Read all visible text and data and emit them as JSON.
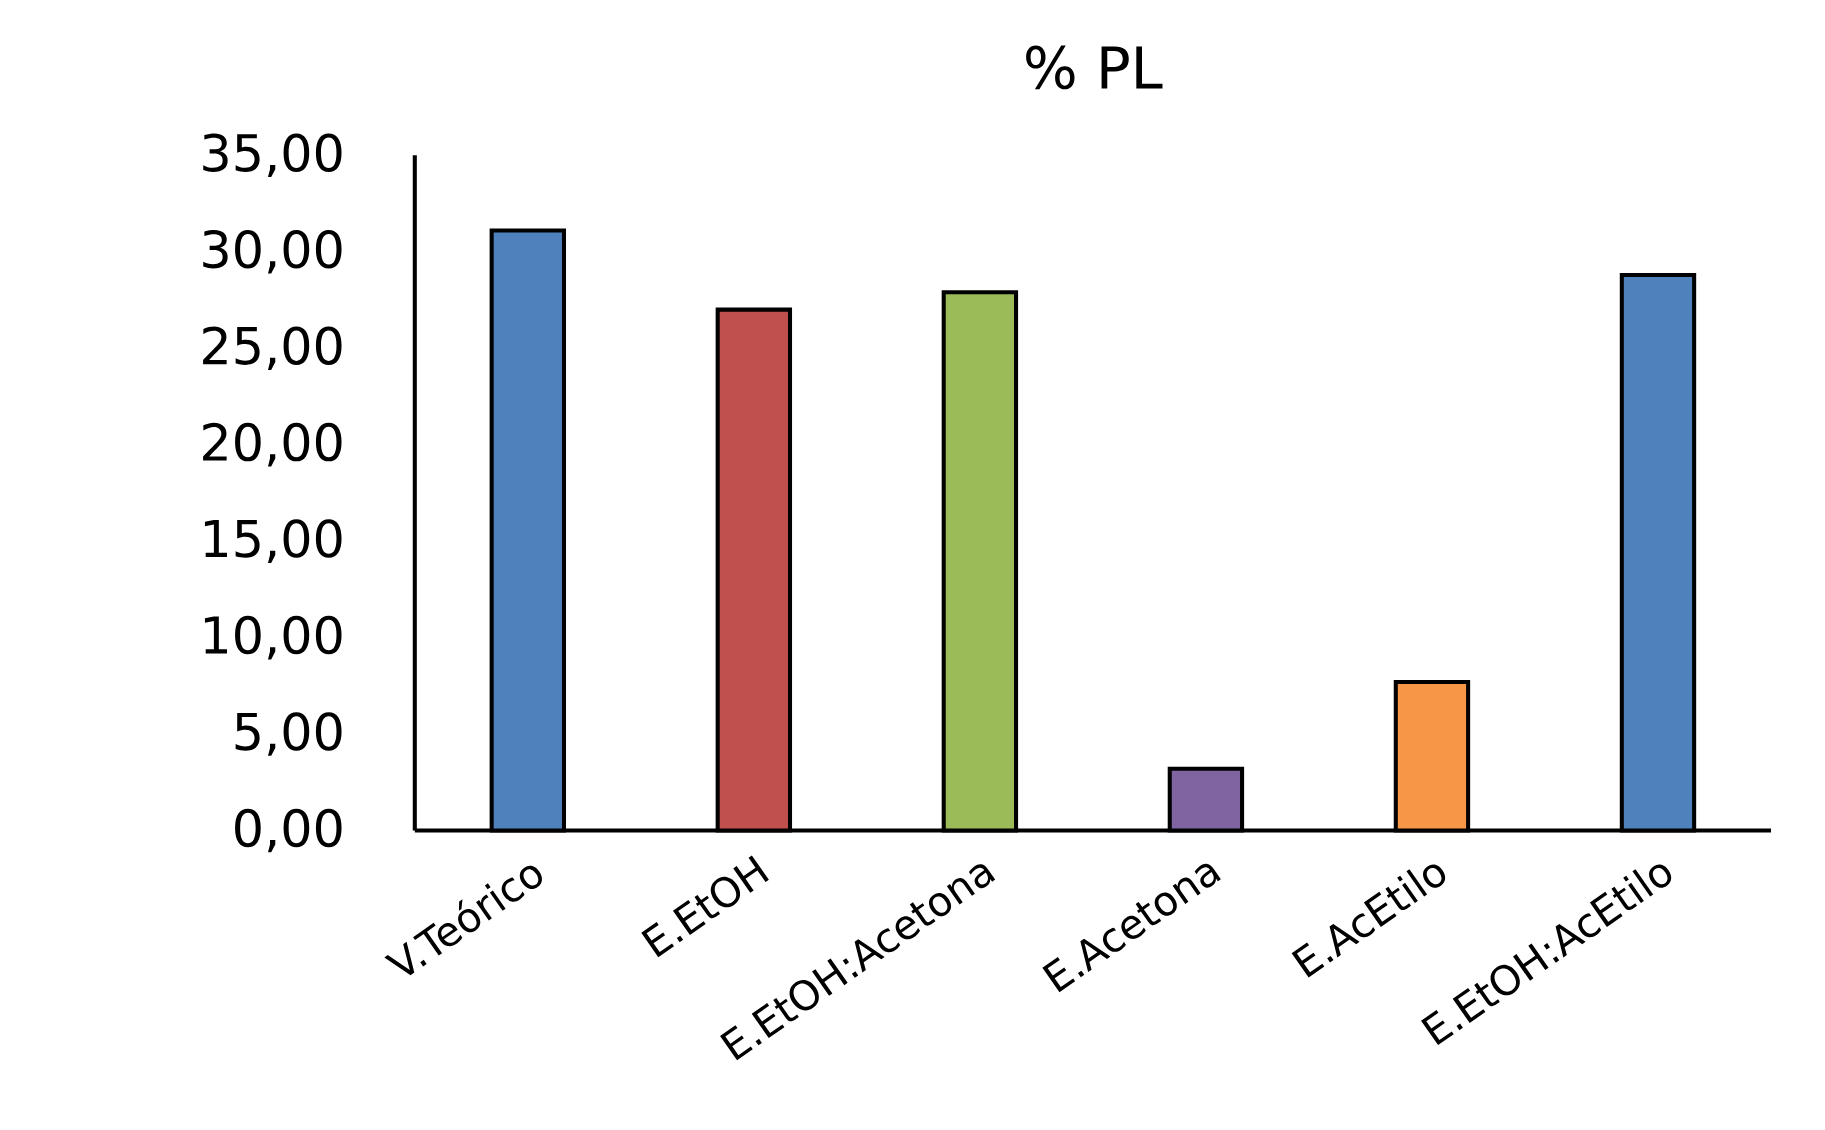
{
  "chart_data": {
    "type": "bar",
    "title": "% PL",
    "categories": [
      "V.Teórico",
      "E.EtOH",
      "E.EtOH:Acetona",
      "E.Acetona",
      "E.AcEtilo",
      "E.EtOH:AcEtilo"
    ],
    "values": [
      31.1,
      27.0,
      27.9,
      3.2,
      7.7,
      28.8
    ],
    "colors": [
      "#4f81bd",
      "#c0504d",
      "#9bbb59",
      "#8064a2",
      "#f79646",
      "#4f81bd"
    ],
    "ylim": [
      0,
      35
    ],
    "yticks": [
      {
        "value": 0,
        "label": "0,00"
      },
      {
        "value": 5,
        "label": "5,00"
      },
      {
        "value": 10,
        "label": "10,00"
      },
      {
        "value": 15,
        "label": "15,00"
      },
      {
        "value": 20,
        "label": "20,00"
      },
      {
        "value": 25,
        "label": "25,00"
      },
      {
        "value": 30,
        "label": "30,00"
      },
      {
        "value": 35,
        "label": "35,00"
      }
    ]
  }
}
